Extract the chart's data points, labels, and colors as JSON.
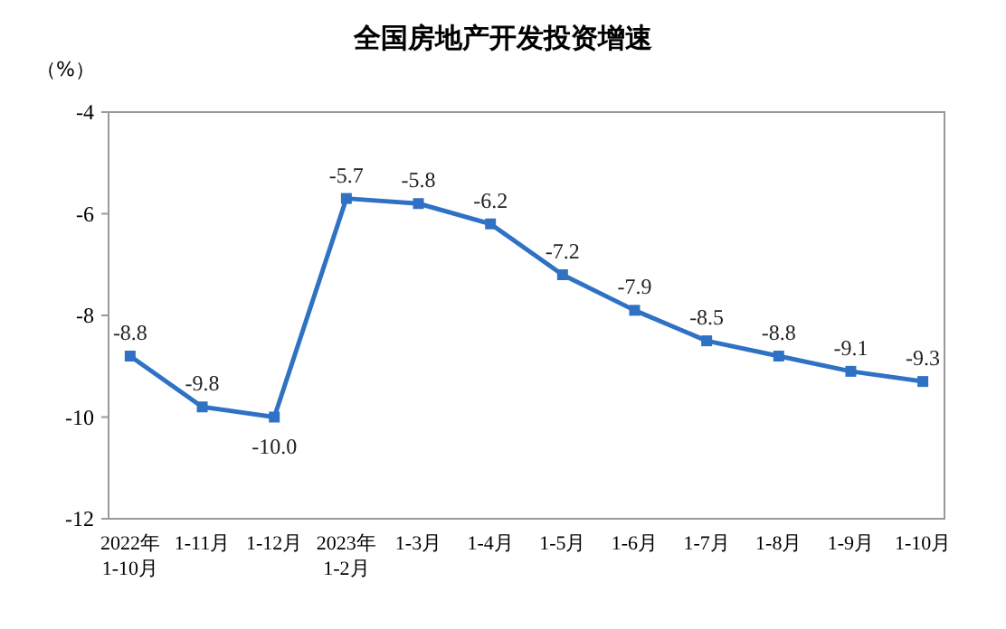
{
  "chart_data": {
    "type": "line",
    "title": "全国房地产开发投资增速",
    "ylabel": "（%）",
    "categories": [
      "2022年\n1-10月",
      "1-11月",
      "1-12月",
      "2023年\n1-2月",
      "1-3月",
      "1-4月",
      "1-5月",
      "1-6月",
      "1-7月",
      "1-8月",
      "1-9月",
      "1-10月"
    ],
    "series": [
      {
        "color": "#2f72c4",
        "values": [
          -8.8,
          -9.8,
          -10.0,
          -5.7,
          -5.8,
          -6.2,
          -7.2,
          -7.9,
          -8.5,
          -8.8,
          -9.1,
          -9.3
        ]
      }
    ],
    "ylim": [
      -12,
      -4
    ],
    "yticks": [
      -12,
      -10,
      -8,
      -6,
      -4
    ],
    "value_labels": [
      "-8.8",
      "-9.8",
      "-10.0",
      "-5.7",
      "-5.8",
      "-6.2",
      "-7.2",
      "-7.9",
      "-8.5",
      "-8.8",
      "-9.1",
      "-9.3"
    ],
    "marker": "square",
    "line_style": "solid"
  }
}
